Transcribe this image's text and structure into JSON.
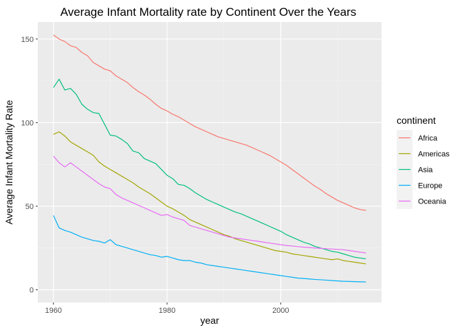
{
  "chart_data": {
    "type": "line",
    "title": "Average Infant Mortality rate by Continent Over the Years",
    "xlabel": "year",
    "ylabel": "Average Infant Mortality Rate",
    "xlim": [
      1960,
      2015
    ],
    "ylim": [
      0,
      155
    ],
    "x_ticks": [
      1960,
      1980,
      2000
    ],
    "y_ticks": [
      0,
      50,
      100,
      150
    ],
    "grid": true,
    "legend": {
      "title": "continent",
      "placement": "right"
    },
    "x": [
      1960,
      1961,
      1962,
      1963,
      1964,
      1965,
      1966,
      1967,
      1968,
      1969,
      1970,
      1971,
      1972,
      1973,
      1974,
      1975,
      1976,
      1977,
      1978,
      1979,
      1980,
      1981,
      1982,
      1983,
      1984,
      1985,
      1986,
      1987,
      1988,
      1989,
      1990,
      1991,
      1992,
      1993,
      1994,
      1995,
      1996,
      1997,
      1998,
      1999,
      2000,
      2001,
      2002,
      2003,
      2004,
      2005,
      2006,
      2007,
      2008,
      2009,
      2010,
      2011,
      2012,
      2013,
      2014,
      2015
    ],
    "series": [
      {
        "name": "Africa",
        "color": "#F8766D",
        "values": [
          152.5,
          150.0,
          148.5,
          146.0,
          145.0,
          142.0,
          140.0,
          136.0,
          134.0,
          132.0,
          131.0,
          128.0,
          126.0,
          124.0,
          121.0,
          118.5,
          116.5,
          114.0,
          111.0,
          108.5,
          107.0,
          105.0,
          103.5,
          101.5,
          99.5,
          97.5,
          96.0,
          94.5,
          93.0,
          91.5,
          90.5,
          89.5,
          88.5,
          87.5,
          86.5,
          85.0,
          83.5,
          82.0,
          80.5,
          78.5,
          76.5,
          74.5,
          72.0,
          69.5,
          67.0,
          64.5,
          62.0,
          60.0,
          57.5,
          55.5,
          53.5,
          52.0,
          50.5,
          49.0,
          48.0,
          47.5
        ]
      },
      {
        "name": "Americas",
        "color": "#A3A500",
        "values": [
          93.0,
          94.5,
          92.0,
          88.5,
          86.5,
          84.5,
          82.5,
          80.5,
          76.5,
          74.0,
          72.0,
          70.0,
          68.0,
          66.0,
          64.0,
          61.5,
          59.5,
          57.5,
          55.0,
          52.5,
          50.0,
          48.5,
          46.5,
          44.5,
          42.0,
          40.5,
          39.0,
          37.5,
          36.0,
          34.5,
          33.0,
          32.0,
          30.5,
          29.5,
          28.5,
          27.5,
          26.5,
          25.5,
          24.5,
          23.5,
          23.0,
          22.5,
          21.5,
          21.0,
          20.5,
          20.0,
          19.5,
          19.0,
          18.5,
          18.0,
          18.5,
          17.5,
          17.0,
          16.5,
          16.0,
          15.5
        ]
      },
      {
        "name": "Asia",
        "color": "#00BF7D",
        "values": [
          121.0,
          126.0,
          119.5,
          120.5,
          117.0,
          111.0,
          108.0,
          106.0,
          105.5,
          99.0,
          92.5,
          92.0,
          90.0,
          87.5,
          83.0,
          82.0,
          78.5,
          77.0,
          75.5,
          72.0,
          68.5,
          66.5,
          63.0,
          62.5,
          60.5,
          58.0,
          56.0,
          54.0,
          52.5,
          51.0,
          49.5,
          48.0,
          46.5,
          45.5,
          44.0,
          42.5,
          41.0,
          39.5,
          38.0,
          36.5,
          35.0,
          33.0,
          31.5,
          30.0,
          28.5,
          27.5,
          26.0,
          25.0,
          24.0,
          23.0,
          22.5,
          21.5,
          20.5,
          19.5,
          19.0,
          18.5
        ]
      },
      {
        "name": "Europe",
        "color": "#00B0F6",
        "values": [
          44.5,
          37.0,
          35.5,
          34.5,
          33.0,
          31.5,
          30.5,
          29.5,
          29.0,
          28.0,
          30.0,
          27.0,
          26.0,
          25.0,
          24.0,
          23.0,
          22.0,
          21.0,
          20.5,
          19.5,
          20.0,
          19.0,
          18.0,
          17.5,
          17.5,
          16.5,
          16.0,
          15.0,
          14.5,
          14.0,
          13.5,
          13.0,
          12.5,
          12.0,
          11.5,
          11.0,
          10.5,
          10.0,
          9.5,
          9.0,
          8.5,
          8.0,
          7.5,
          7.0,
          6.8,
          6.5,
          6.2,
          6.0,
          5.8,
          5.5,
          5.3,
          5.1,
          5.0,
          4.9,
          4.8,
          4.7
        ]
      },
      {
        "name": "Oceania",
        "color": "#E76BF3",
        "values": [
          80.0,
          76.0,
          73.5,
          76.0,
          73.5,
          71.0,
          68.5,
          66.0,
          63.5,
          61.5,
          60.5,
          57.0,
          55.0,
          53.5,
          52.0,
          50.5,
          49.0,
          47.5,
          46.0,
          44.5,
          45.0,
          43.5,
          42.5,
          41.5,
          38.5,
          37.5,
          36.5,
          35.5,
          34.5,
          33.5,
          32.5,
          31.5,
          31.0,
          30.5,
          30.0,
          29.5,
          29.0,
          28.5,
          28.0,
          27.5,
          27.0,
          26.5,
          26.2,
          25.8,
          25.5,
          25.3,
          25.0,
          24.8,
          24.6,
          24.4,
          24.2,
          24.0,
          23.5,
          23.0,
          22.5,
          22.0
        ]
      }
    ]
  }
}
